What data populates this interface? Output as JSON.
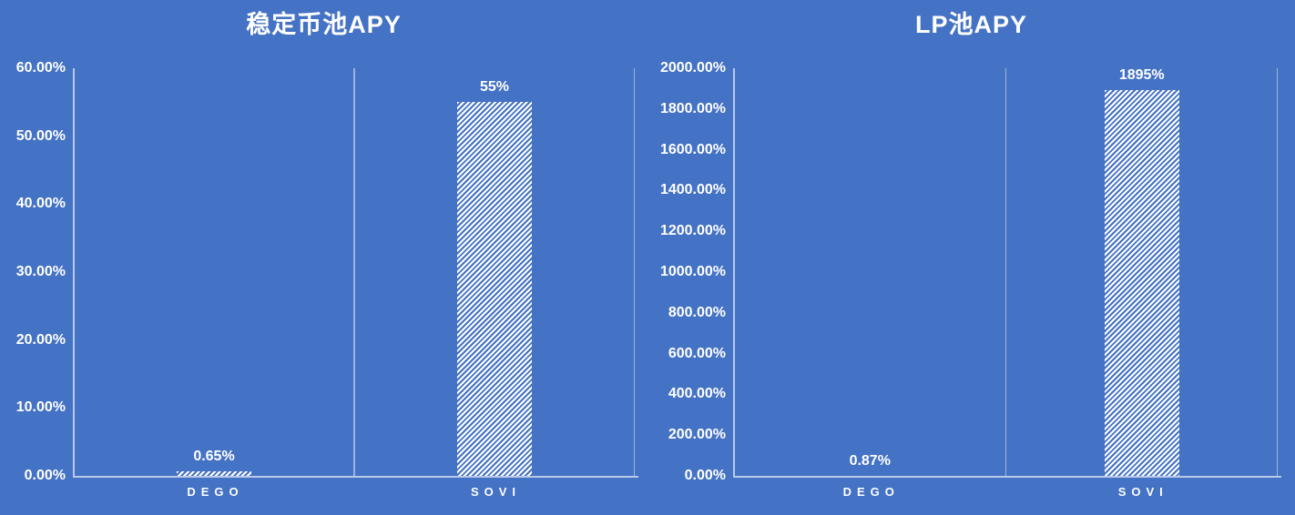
{
  "page": {
    "background_color": "#4472C4",
    "text_color": "#FFFFFF"
  },
  "colors": {
    "background": "#4472C4",
    "text": "#FFFFFF",
    "axis_line": "rgba(255,255,255,0.62)",
    "category_gridline": "rgba(255,255,255,0.48)",
    "bar_hatch": "#FFFFFF"
  },
  "chart_data": [
    {
      "type": "bar",
      "title": "稳定币池APY",
      "categories": [
        "DEGO",
        "SOVI"
      ],
      "values": [
        0.65,
        55
      ],
      "value_labels": [
        "0.65%",
        "55%"
      ],
      "unit": "percent",
      "ylim": [
        0,
        60
      ],
      "y_tick_step": 10,
      "y_tick_labels": [
        "0.00%",
        "10.00%",
        "20.00%",
        "30.00%",
        "40.00%",
        "50.00%",
        "60.00%"
      ],
      "xlabel": "",
      "ylabel": "",
      "legend": "none",
      "grid": "vertical-category-lines-only",
      "bar_style": "white-diagonal-hatch"
    },
    {
      "type": "bar",
      "title": "LP池APY",
      "categories": [
        "DEGO",
        "SOVI"
      ],
      "values": [
        0.87,
        1895
      ],
      "value_labels": [
        "0.87%",
        "1895%"
      ],
      "unit": "percent",
      "ylim": [
        0,
        2000
      ],
      "y_tick_step": 200,
      "y_tick_labels": [
        "0.00%",
        "200.00%",
        "400.00%",
        "600.00%",
        "800.00%",
        "1000.00%",
        "1200.00%",
        "1400.00%",
        "1600.00%",
        "1800.00%",
        "2000.00%"
      ],
      "xlabel": "",
      "ylabel": "",
      "legend": "none",
      "grid": "vertical-category-lines-only",
      "bar_style": "white-diagonal-hatch"
    }
  ]
}
